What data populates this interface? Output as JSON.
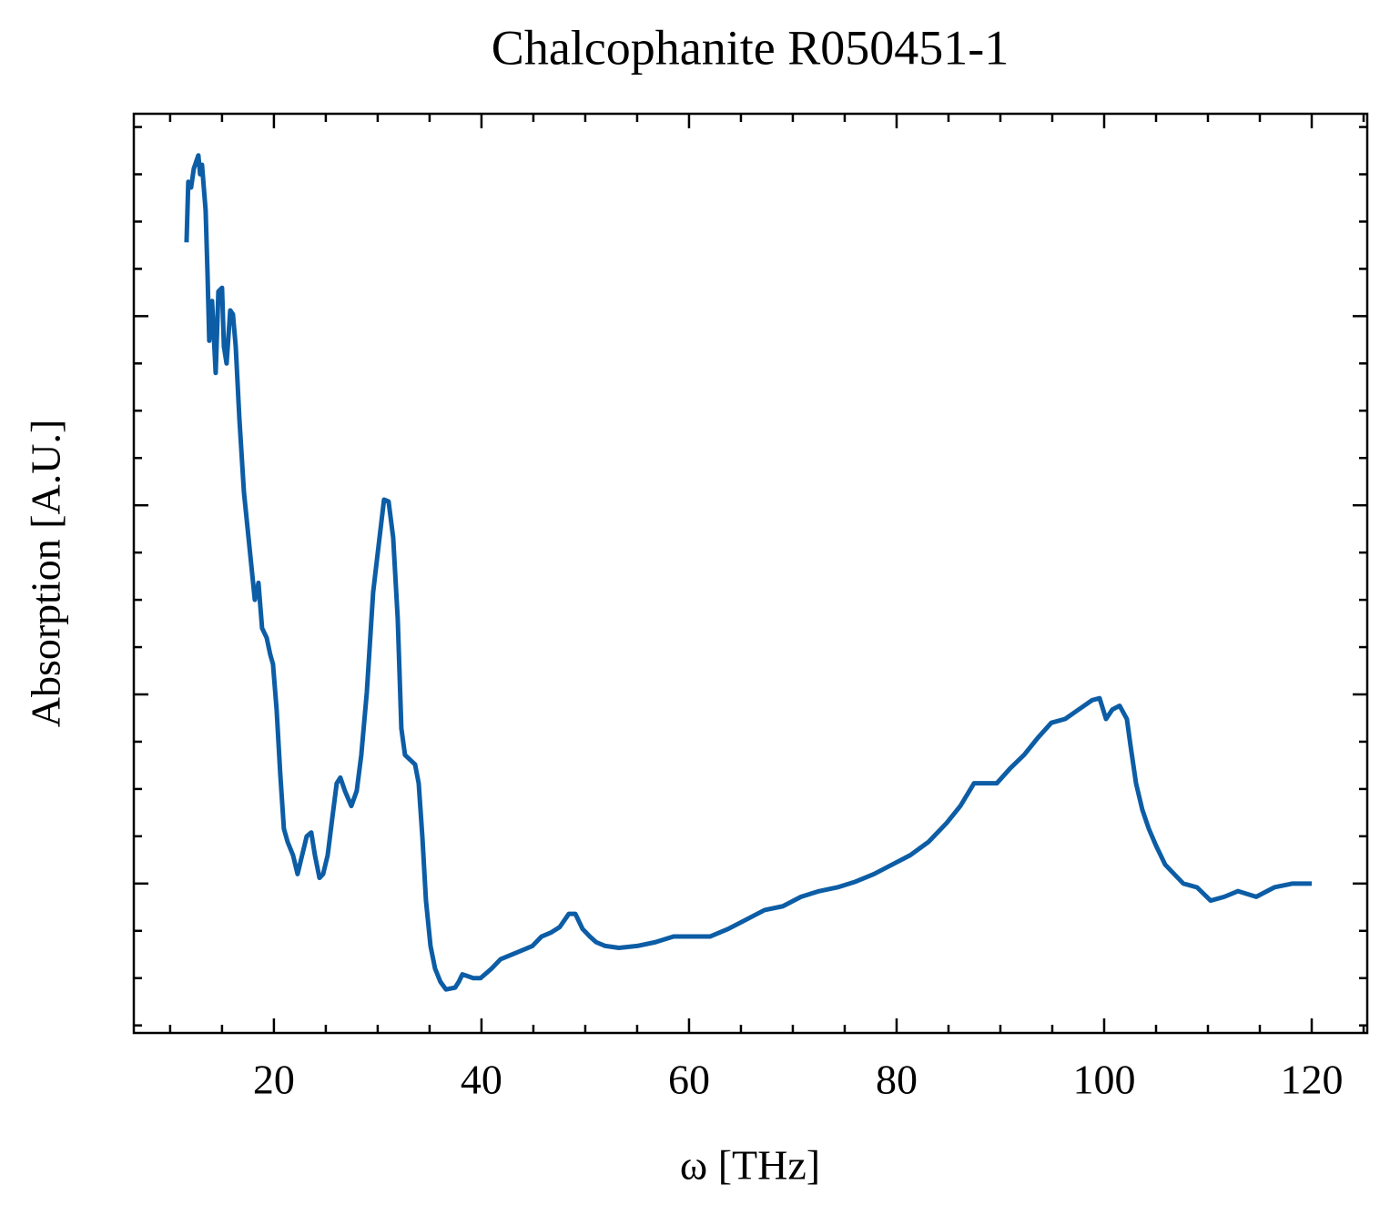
{
  "chart_data": {
    "type": "line",
    "title": "Chalcophanite R050451-1",
    "x_label": "ω [THz]",
    "y_label": "Absorption [A.U.]",
    "xlim": [
      6.5,
      125.35
    ],
    "xticks": [
      20,
      40,
      60,
      80,
      100,
      120
    ],
    "ylim": [
      -0.79,
      4.07
    ],
    "yticks": [
      0,
      1,
      2,
      3
    ],
    "show_ytick_labels": false,
    "grid": false,
    "series": [
      {
        "name": "Chalcophanite R050451-1",
        "color": "#0C5DA5",
        "x": [
          11.58,
          11.75,
          12.02,
          12.28,
          12.72,
          12.89,
          13.07,
          13.42,
          13.6,
          13.77,
          14.04,
          14.39,
          14.65,
          15.0,
          15.18,
          15.44,
          15.79,
          16.05,
          16.32,
          16.67,
          17.11,
          17.46,
          17.81,
          18.16,
          18.51,
          18.86,
          19.3,
          19.65,
          19.91,
          20.26,
          20.61,
          20.96,
          21.32,
          21.84,
          22.28,
          22.63,
          23.16,
          23.6,
          23.95,
          24.39,
          24.74,
          25.18,
          25.61,
          26.05,
          26.4,
          26.84,
          27.46,
          27.98,
          28.42,
          28.95,
          29.56,
          30.18,
          30.61,
          31.05,
          31.49,
          31.93,
          32.28,
          32.63,
          33.6,
          33.95,
          34.3,
          34.65,
          35.09,
          35.53,
          36.05,
          36.58,
          37.46,
          37.81,
          38.16,
          38.68,
          39.21,
          39.91,
          40.96,
          41.84,
          42.72,
          43.6,
          44.91,
          45.79,
          46.67,
          47.54,
          48.42,
          49.04,
          49.74,
          50.44,
          51.05,
          51.93,
          53.25,
          55.0,
          56.75,
          58.51,
          60.26,
          62.02,
          63.77,
          65.53,
          67.28,
          69.04,
          70.79,
          72.54,
          74.3,
          76.05,
          77.81,
          79.56,
          81.32,
          83.07,
          84.82,
          86.14,
          87.46,
          88.33,
          89.65,
          90.96,
          92.28,
          93.6,
          94.91,
          96.23,
          97.54,
          98.86,
          99.56,
          100.18,
          100.79,
          101.49,
          102.19,
          102.54,
          103.07,
          103.68,
          104.3,
          105.0,
          105.88,
          106.75,
          107.63,
          108.95,
          110.26,
          111.58,
          112.89,
          114.65,
          116.4,
          118.16,
          120.0
        ],
        "values": [
          3.39,
          3.71,
          3.68,
          3.78,
          3.85,
          3.75,
          3.8,
          3.56,
          3.23,
          2.87,
          3.08,
          2.7,
          3.13,
          3.15,
          2.84,
          2.75,
          3.03,
          3.01,
          2.84,
          2.46,
          2.07,
          1.88,
          1.69,
          1.5,
          1.59,
          1.35,
          1.3,
          1.21,
          1.16,
          0.92,
          0.58,
          0.29,
          0.22,
          0.15,
          0.05,
          0.13,
          0.25,
          0.27,
          0.15,
          0.03,
          0.05,
          0.15,
          0.34,
          0.53,
          0.56,
          0.49,
          0.41,
          0.49,
          0.68,
          1.01,
          1.54,
          1.83,
          2.03,
          2.02,
          1.83,
          1.4,
          0.82,
          0.68,
          0.63,
          0.53,
          0.25,
          -0.09,
          -0.33,
          -0.45,
          -0.52,
          -0.56,
          -0.55,
          -0.52,
          -0.48,
          -0.49,
          -0.5,
          -0.5,
          -0.45,
          -0.4,
          -0.38,
          -0.36,
          -0.33,
          -0.28,
          -0.26,
          -0.23,
          -0.16,
          -0.16,
          -0.24,
          -0.28,
          -0.31,
          -0.33,
          -0.34,
          -0.33,
          -0.31,
          -0.28,
          -0.28,
          -0.28,
          -0.24,
          -0.19,
          -0.14,
          -0.12,
          -0.07,
          -0.04,
          -0.02,
          0.01,
          0.05,
          0.1,
          0.15,
          0.22,
          0.32,
          0.41,
          0.53,
          0.53,
          0.53,
          0.61,
          0.68,
          0.77,
          0.85,
          0.87,
          0.92,
          0.97,
          0.98,
          0.87,
          0.92,
          0.94,
          0.87,
          0.73,
          0.53,
          0.39,
          0.29,
          0.2,
          0.1,
          0.05,
          0.0,
          -0.02,
          -0.09,
          -0.07,
          -0.04,
          -0.07,
          -0.02,
          0.0,
          0.0
        ]
      }
    ]
  }
}
